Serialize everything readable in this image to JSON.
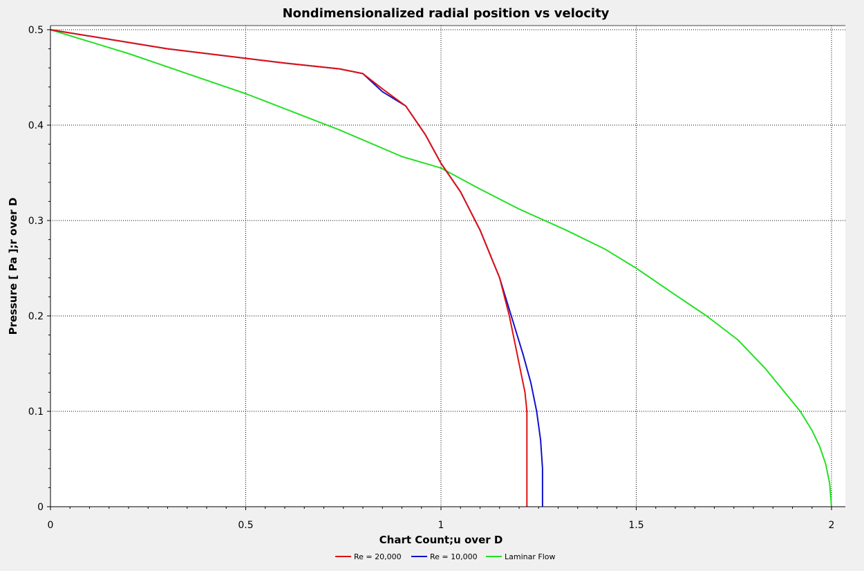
{
  "chart_data": {
    "type": "line",
    "title": "Nondimensionalized radial position vs velocity",
    "xlabel": "Chart Count;u over D",
    "ylabel": "Pressure [ Pa ];r over D",
    "xlim": [
      0,
      2
    ],
    "ylim": [
      0,
      0.5
    ],
    "xticks": [
      0,
      0.5,
      1,
      1.5,
      2
    ],
    "yticks": [
      0,
      0.1,
      0.2,
      0.3,
      0.4,
      0.5
    ],
    "xtick_labels": [
      "0",
      "0.5",
      "1",
      "1.5",
      "2"
    ],
    "ytick_labels": [
      "0",
      "0.1",
      "0.2",
      "0.3",
      "0.4",
      "0.5"
    ],
    "grid": true,
    "legend_position": "bottom-center",
    "series": [
      {
        "name": "Re = 20,000",
        "color": "#e01010",
        "points": [
          [
            0,
            0.5
          ],
          [
            0.3,
            0.48
          ],
          [
            0.6,
            0.465
          ],
          [
            0.74,
            0.459
          ],
          [
            0.8,
            0.454
          ],
          [
            0.85,
            0.438
          ],
          [
            0.91,
            0.42
          ],
          [
            0.96,
            0.39
          ],
          [
            1.0,
            0.36
          ],
          [
            1.05,
            0.33
          ],
          [
            1.1,
            0.29
          ],
          [
            1.15,
            0.24
          ],
          [
            1.175,
            0.2
          ],
          [
            1.19,
            0.17
          ],
          [
            1.205,
            0.14
          ],
          [
            1.215,
            0.12
          ],
          [
            1.22,
            0.1
          ],
          [
            1.22,
            0.0
          ]
        ]
      },
      {
        "name": "Re = 10,000",
        "color": "#1010d0",
        "points": [
          [
            0,
            0.5
          ],
          [
            0.3,
            0.48
          ],
          [
            0.6,
            0.465
          ],
          [
            0.74,
            0.459
          ],
          [
            0.8,
            0.454
          ],
          [
            0.85,
            0.435
          ],
          [
            0.91,
            0.42
          ],
          [
            0.96,
            0.39
          ],
          [
            1.0,
            0.36
          ],
          [
            1.05,
            0.33
          ],
          [
            1.1,
            0.29
          ],
          [
            1.15,
            0.24
          ],
          [
            1.18,
            0.2
          ],
          [
            1.21,
            0.16
          ],
          [
            1.23,
            0.13
          ],
          [
            1.245,
            0.1
          ],
          [
            1.255,
            0.07
          ],
          [
            1.26,
            0.04
          ],
          [
            1.26,
            0.0
          ]
        ]
      },
      {
        "name": "Laminar Flow",
        "color": "#22e022",
        "points": [
          [
            0,
            0.5
          ],
          [
            0.2,
            0.475
          ],
          [
            0.5,
            0.433
          ],
          [
            0.74,
            0.395
          ],
          [
            0.9,
            0.367
          ],
          [
            1.0,
            0.355
          ],
          [
            1.1,
            0.333
          ],
          [
            1.2,
            0.312
          ],
          [
            1.32,
            0.29
          ],
          [
            1.42,
            0.27
          ],
          [
            1.5,
            0.25
          ],
          [
            1.6,
            0.222
          ],
          [
            1.68,
            0.2
          ],
          [
            1.76,
            0.175
          ],
          [
            1.83,
            0.145
          ],
          [
            1.88,
            0.12
          ],
          [
            1.92,
            0.1
          ],
          [
            1.95,
            0.08
          ],
          [
            1.97,
            0.063
          ],
          [
            1.985,
            0.045
          ],
          [
            1.995,
            0.025
          ],
          [
            2.0,
            0.0
          ]
        ]
      }
    ]
  }
}
